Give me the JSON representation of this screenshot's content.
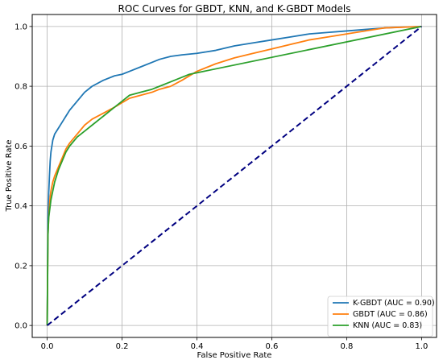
{
  "chart_data": {
    "type": "line",
    "title": "ROC Curves for GBDT, KNN, and K-GBDT Models",
    "xlabel": "False Positive Rate",
    "ylabel": "True Positive Rate",
    "xlim": [
      -0.04,
      1.04
    ],
    "ylim": [
      -0.04,
      1.04
    ],
    "xticks": [
      "0.0",
      "0.2",
      "0.4",
      "0.6",
      "0.8",
      "1.0"
    ],
    "yticks": [
      "0.0",
      "0.2",
      "0.4",
      "0.6",
      "0.8",
      "1.0"
    ],
    "grid": true,
    "legend_position": "lower-right",
    "series": [
      {
        "name": "K-GBDT (AUC = 0.90)",
        "color": "#1f77b4",
        "x": [
          0,
          0.002,
          0.004,
          0.006,
          0.008,
          0.01,
          0.015,
          0.02,
          0.03,
          0.04,
          0.05,
          0.06,
          0.08,
          0.1,
          0.12,
          0.15,
          0.18,
          0.2,
          0.22,
          0.25,
          0.28,
          0.3,
          0.33,
          0.36,
          0.4,
          0.45,
          0.5,
          0.55,
          0.6,
          0.65,
          0.7,
          0.75,
          0.8,
          0.85,
          0.9,
          0.95,
          1.0
        ],
        "y": [
          0,
          0.36,
          0.44,
          0.5,
          0.55,
          0.58,
          0.62,
          0.64,
          0.66,
          0.68,
          0.7,
          0.72,
          0.75,
          0.78,
          0.8,
          0.82,
          0.835,
          0.84,
          0.85,
          0.865,
          0.88,
          0.89,
          0.9,
          0.905,
          0.91,
          0.92,
          0.935,
          0.945,
          0.955,
          0.965,
          0.975,
          0.98,
          0.985,
          0.99,
          0.995,
          0.998,
          1.0
        ]
      },
      {
        "name": "GBDT (AUC = 0.86)",
        "color": "#ff7f0e",
        "x": [
          0,
          0.002,
          0.004,
          0.006,
          0.008,
          0.01,
          0.015,
          0.02,
          0.03,
          0.04,
          0.05,
          0.06,
          0.08,
          0.1,
          0.12,
          0.15,
          0.18,
          0.2,
          0.22,
          0.25,
          0.28,
          0.3,
          0.33,
          0.36,
          0.4,
          0.45,
          0.5,
          0.55,
          0.6,
          0.65,
          0.7,
          0.75,
          0.8,
          0.85,
          0.9,
          1.0
        ],
        "y": [
          0,
          0.3,
          0.36,
          0.4,
          0.43,
          0.45,
          0.48,
          0.5,
          0.53,
          0.56,
          0.59,
          0.61,
          0.64,
          0.67,
          0.69,
          0.71,
          0.73,
          0.745,
          0.76,
          0.77,
          0.78,
          0.79,
          0.8,
          0.82,
          0.85,
          0.875,
          0.895,
          0.91,
          0.925,
          0.94,
          0.955,
          0.965,
          0.975,
          0.985,
          0.995,
          1.0
        ]
      },
      {
        "name": "KNN (AUC = 0.83)",
        "color": "#2ca02c",
        "x": [
          0,
          0.002,
          0.004,
          0.006,
          0.008,
          0.01,
          0.015,
          0.02,
          0.03,
          0.04,
          0.05,
          0.06,
          0.08,
          0.1,
          0.12,
          0.15,
          0.18,
          0.2,
          0.22,
          0.25,
          0.28,
          0.3,
          0.33,
          0.36,
          0.38,
          1.0
        ],
        "y": [
          0,
          0.3,
          0.36,
          0.38,
          0.4,
          0.42,
          0.45,
          0.48,
          0.52,
          0.55,
          0.58,
          0.6,
          0.63,
          0.65,
          0.67,
          0.7,
          0.73,
          0.75,
          0.77,
          0.78,
          0.79,
          0.8,
          0.815,
          0.83,
          0.84,
          1.0
        ]
      },
      {
        "name": "",
        "color": "#000080",
        "dashed": true,
        "x": [
          0,
          1
        ],
        "y": [
          0,
          1
        ]
      }
    ]
  }
}
